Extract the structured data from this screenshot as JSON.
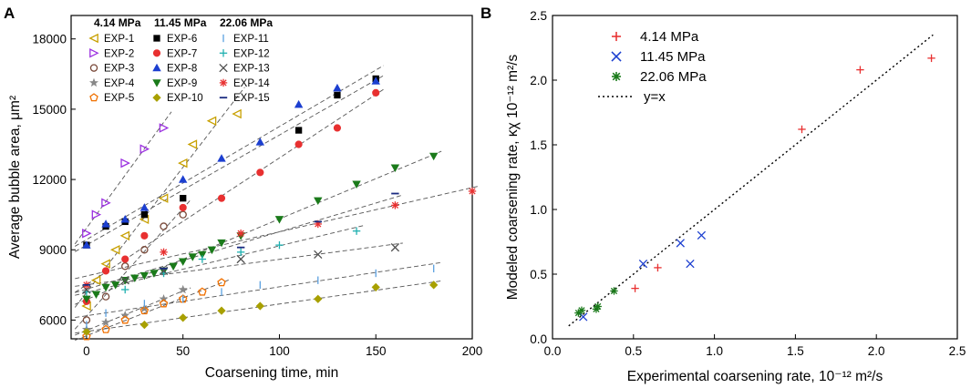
{
  "panels": {
    "a": "A",
    "b": "B"
  },
  "chart_data": [
    {
      "type": "scatter",
      "id": "A",
      "xlabel": "Coarsening time, min",
      "ylabel": "Average bubble area, μm²",
      "xlim": [
        -8,
        200
      ],
      "ylim": [
        5200,
        19000
      ],
      "xticks": [
        0,
        50,
        100,
        150,
        200
      ],
      "yticks": [
        6000,
        9000,
        12000,
        15000,
        18000
      ],
      "legend_headers": [
        "4.14 MPa",
        "11.45 MPa",
        "22.06 MPa"
      ],
      "series": [
        {
          "name": "EXP-1",
          "group": "4.14 MPa",
          "marker": "tri-left",
          "color": "#c8a000",
          "x": [
            0,
            5,
            10,
            15,
            20,
            30,
            40,
            50,
            55,
            65,
            78
          ],
          "y": [
            6600,
            7700,
            8400,
            9000,
            9600,
            10300,
            11200,
            12700,
            13500,
            14500,
            14800
          ]
        },
        {
          "name": "EXP-2",
          "group": "4.14 MPa",
          "marker": "tri-right",
          "color": "#9b30e0",
          "x": [
            0,
            5,
            10,
            20,
            30,
            40
          ],
          "y": [
            9700,
            10500,
            11000,
            12700,
            13300,
            14200
          ]
        },
        {
          "name": "EXP-3",
          "group": "4.14 MPa",
          "marker": "circle-open",
          "color": "#7a4a3a",
          "x": [
            0,
            10,
            20,
            30,
            40,
            50
          ],
          "y": [
            6000,
            7000,
            8300,
            9000,
            10000,
            10500
          ]
        },
        {
          "name": "EXP-4",
          "group": "4.14 MPa",
          "marker": "star",
          "color": "#888888",
          "x": [
            0,
            10,
            20,
            30,
            40,
            50
          ],
          "y": [
            5600,
            5900,
            6200,
            6500,
            6900,
            7300
          ]
        },
        {
          "name": "EXP-5",
          "group": "4.14 MPa",
          "marker": "pentagon-open",
          "color": "#f07000",
          "x": [
            0,
            10,
            20,
            30,
            40,
            50,
            60,
            70
          ],
          "y": [
            5300,
            5600,
            6000,
            6400,
            6700,
            6900,
            7200,
            7600
          ]
        },
        {
          "name": "EXP-6",
          "group": "11.45 MPa",
          "marker": "square",
          "color": "#000000",
          "x": [
            0,
            10,
            20,
            30,
            50,
            110,
            130,
            150
          ],
          "y": [
            9200,
            10000,
            10200,
            10500,
            11200,
            14100,
            15600,
            16300
          ]
        },
        {
          "name": "EXP-7",
          "group": "11.45 MPa",
          "marker": "circle",
          "color": "#e83030",
          "x": [
            0,
            10,
            20,
            30,
            50,
            70,
            90,
            110,
            130,
            150
          ],
          "y": [
            6800,
            8100,
            8600,
            9600,
            10800,
            11200,
            12300,
            13500,
            14200,
            15700
          ]
        },
        {
          "name": "EXP-8",
          "group": "11.45 MPa",
          "marker": "tri-up",
          "color": "#1c3fd0",
          "x": [
            0,
            10,
            20,
            30,
            50,
            70,
            90,
            110,
            130,
            150
          ],
          "y": [
            9200,
            10100,
            10300,
            10800,
            12000,
            12900,
            13600,
            15200,
            15900,
            16200
          ]
        },
        {
          "name": "EXP-9",
          "group": "11.45 MPa",
          "marker": "tri-down",
          "color": "#1a7a1a",
          "x": [
            0,
            5,
            10,
            15,
            20,
            25,
            30,
            35,
            40,
            45,
            50,
            55,
            60,
            65,
            70,
            80,
            100,
            120,
            140,
            160,
            180
          ],
          "y": [
            6900,
            7100,
            7400,
            7500,
            7700,
            7800,
            7900,
            8000,
            8100,
            8300,
            8500,
            8700,
            8800,
            9000,
            9300,
            9600,
            10300,
            11100,
            11800,
            12500,
            13000
          ]
        },
        {
          "name": "EXP-10",
          "group": "11.45 MPa",
          "marker": "diamond",
          "color": "#a8a000",
          "x": [
            0,
            30,
            50,
            70,
            90,
            120,
            150,
            180
          ],
          "y": [
            5500,
            5800,
            6100,
            6400,
            6600,
            6900,
            7400,
            7500
          ]
        },
        {
          "name": "EXP-11",
          "group": "22.06 MPa",
          "marker": "vline",
          "color": "#5aa0e0",
          "x": [
            0,
            10,
            30,
            50,
            70,
            90,
            120,
            150,
            180
          ],
          "y": [
            5800,
            6300,
            6700,
            6900,
            7200,
            7500,
            7700,
            8000,
            8200
          ]
        },
        {
          "name": "EXP-12",
          "group": "22.06 MPa",
          "marker": "plus",
          "color": "#20b0b0",
          "x": [
            0,
            20,
            40,
            60,
            80,
            100,
            140
          ],
          "y": [
            7200,
            7300,
            8000,
            8600,
            8900,
            9200,
            9800
          ]
        },
        {
          "name": "EXP-13",
          "group": "22.06 MPa",
          "marker": "cross",
          "color": "#505050",
          "x": [
            0,
            20,
            40,
            80,
            120,
            160
          ],
          "y": [
            7300,
            7700,
            8100,
            8600,
            8800,
            9100
          ]
        },
        {
          "name": "EXP-14",
          "group": "22.06 MPa",
          "marker": "asterisk",
          "color": "#e83030",
          "x": [
            0,
            40,
            80,
            120,
            160,
            200
          ],
          "y": [
            7500,
            8900,
            9700,
            10100,
            10900,
            11500
          ]
        },
        {
          "name": "EXP-15",
          "group": "22.06 MPa",
          "marker": "dash",
          "color": "#1a2a80",
          "x": [
            0,
            40,
            80,
            120,
            160
          ],
          "y": [
            7500,
            8200,
            9100,
            10200,
            11400
          ]
        }
      ]
    },
    {
      "type": "scatter",
      "id": "B",
      "xlabel": "Experimental coarsening rate, 10⁻¹² m²/s",
      "ylabel": "Modeled coarsening rate, κχ  10⁻¹² m²/s",
      "xlim": [
        0,
        2.5
      ],
      "ylim": [
        0,
        2.5
      ],
      "xticks": [
        0.0,
        0.5,
        1.0,
        1.5,
        2.0,
        2.5
      ],
      "yticks": [
        0.0,
        0.5,
        1.0,
        1.5,
        2.0,
        2.5
      ],
      "series": [
        {
          "name": "4.14 MPa",
          "marker": "plus",
          "color": "#e83030",
          "x": [
            0.51,
            0.65,
            1.54,
            1.9,
            2.34
          ],
          "y": [
            0.39,
            0.55,
            1.62,
            2.08,
            2.17
          ]
        },
        {
          "name": "11.45 MPa",
          "marker": "cross",
          "color": "#1c3fd0",
          "x": [
            0.19,
            0.56,
            0.79,
            0.85,
            0.92
          ],
          "y": [
            0.17,
            0.58,
            0.74,
            0.58,
            0.8
          ]
        },
        {
          "name": "22.06 MPa",
          "marker": "asterisk",
          "color": "#1a7a1a",
          "x": [
            0.16,
            0.18,
            0.27,
            0.28,
            0.38
          ],
          "y": [
            0.2,
            0.22,
            0.23,
            0.25,
            0.37
          ]
        }
      ],
      "reference_line": {
        "label": "y=x",
        "style": "dotted"
      }
    }
  ]
}
